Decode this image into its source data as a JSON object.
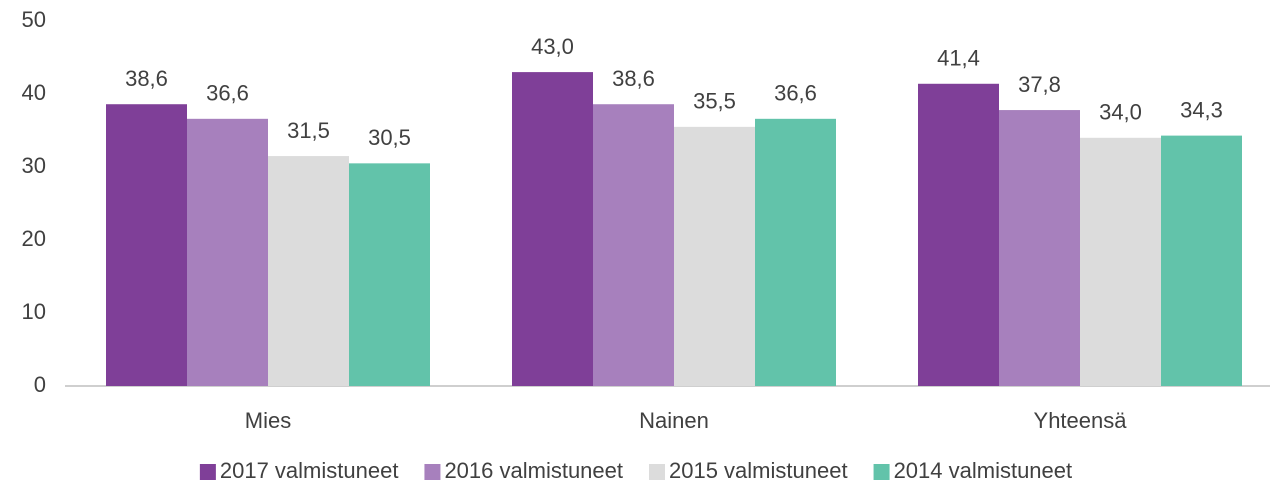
{
  "chart_data": {
    "type": "bar",
    "categories": [
      "Mies",
      "Nainen",
      "Yhteensä"
    ],
    "series": [
      {
        "name": "2017 valmistuneet",
        "color": "#7f3f98",
        "values": [
          38.6,
          43.0,
          41.4
        ],
        "value_labels": [
          "38,6",
          "43,0",
          "41,4"
        ]
      },
      {
        "name": "2016 valmistuneet",
        "color": "#a780bd",
        "values": [
          36.6,
          38.6,
          37.8
        ],
        "value_labels": [
          "36,6",
          "38,6",
          "37,8"
        ]
      },
      {
        "name": "2015 valmistuneet",
        "color": "#dcdcdc",
        "values": [
          31.5,
          35.5,
          34.0
        ],
        "value_labels": [
          "31,5",
          "35,5",
          "34,0"
        ]
      },
      {
        "name": "2014 valmistuneet",
        "color": "#62c3aa",
        "values": [
          30.5,
          36.6,
          34.3
        ],
        "value_labels": [
          "30,5",
          "36,6",
          "34,3"
        ]
      }
    ],
    "ylim": [
      0,
      50
    ],
    "yticks": [
      0,
      10,
      20,
      30,
      40,
      50
    ],
    "grid": false,
    "legend": "bottom"
  }
}
